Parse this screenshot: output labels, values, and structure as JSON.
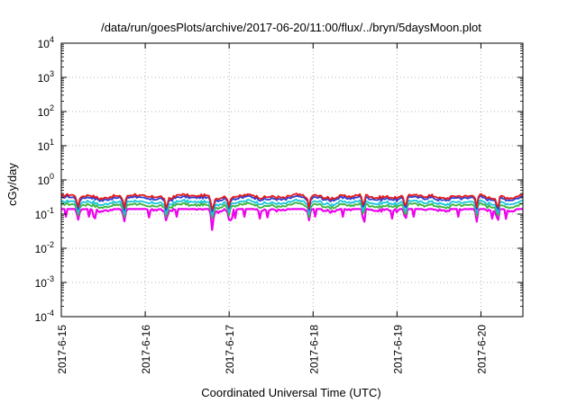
{
  "chart_data": {
    "type": "line",
    "title": "/data/run/goesPlots/archive/2017-06-20/11:00/flux/../bryn/5daysMoon.plot",
    "xlabel": "Coordinated Universal Time (UTC)",
    "ylabel": "cGy/day",
    "y_scale": "log",
    "ylim": [
      0.0001,
      10000
    ],
    "y_ticks": [
      {
        "base": "10",
        "exp": "4",
        "value": 10000
      },
      {
        "base": "10",
        "exp": "3",
        "value": 1000
      },
      {
        "base": "10",
        "exp": "2",
        "value": 100
      },
      {
        "base": "10",
        "exp": "1",
        "value": 10
      },
      {
        "base": "10",
        "exp": "0",
        "value": 1
      },
      {
        "base": "10",
        "exp": "-1",
        "value": 0.1
      },
      {
        "base": "10",
        "exp": "-2",
        "value": 0.01
      },
      {
        "base": "10",
        "exp": "-3",
        "value": 0.001
      },
      {
        "base": "10",
        "exp": "-4",
        "value": 0.0001
      }
    ],
    "x_ticks": [
      "2017-6-15",
      "2017-6-16",
      "2017-6-17",
      "2017-6-18",
      "2017-6-19",
      "2017-6-20"
    ],
    "xlim_days": [
      0,
      5.5
    ],
    "grid": true,
    "colors": {
      "red": "#e41a1c",
      "blue": "#2a3fd6",
      "cyan": "#19c6dd",
      "green": "#3cb43c",
      "magenta": "#ee00ee"
    },
    "series": [
      {
        "color": "red",
        "base": 0.33
      },
      {
        "color": "blue",
        "base": 0.29
      },
      {
        "color": "cyan",
        "base": 0.22
      },
      {
        "color": "green",
        "base": 0.18
      },
      {
        "color": "magenta",
        "base": 0.14
      }
    ],
    "dips": [
      {
        "day": 0.2,
        "value": 0.07
      },
      {
        "day": 0.75,
        "value": 0.08
      },
      {
        "day": 1.25,
        "value": 0.07
      },
      {
        "day": 1.8,
        "value": 0.028
      },
      {
        "day": 2.0,
        "value": 0.09
      },
      {
        "day": 2.95,
        "value": 0.075
      },
      {
        "day": 3.6,
        "value": 0.09
      },
      {
        "day": 4.1,
        "value": 0.09
      },
      {
        "day": 4.95,
        "value": 0.06
      },
      {
        "day": 5.2,
        "value": 0.08
      }
    ]
  }
}
